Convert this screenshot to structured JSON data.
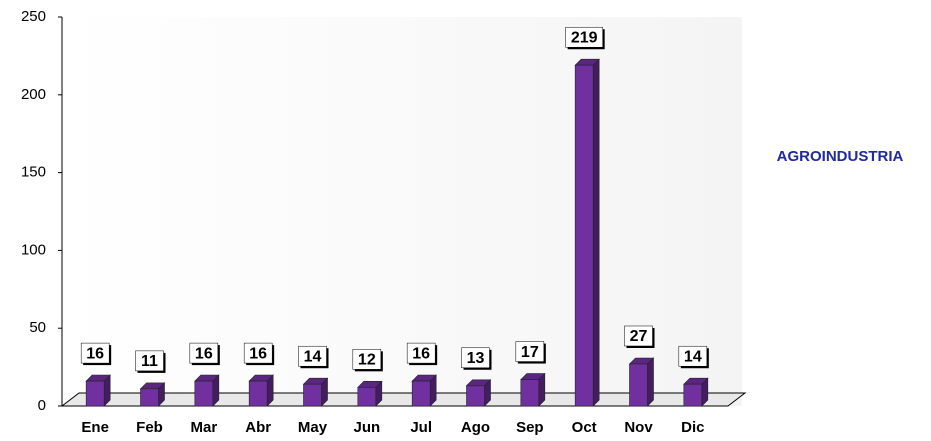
{
  "chart_data": {
    "type": "bar",
    "categories": [
      "Ene",
      "Feb",
      "Mar",
      "Abr",
      "May",
      "Jun",
      "Jul",
      "Ago",
      "Sep",
      "Oct",
      "Nov",
      "Dic"
    ],
    "series": [
      {
        "name": "AGROINDUSTRIA",
        "color": "#7030a0",
        "values": [
          16,
          11,
          16,
          16,
          14,
          12,
          16,
          13,
          17,
          219,
          27,
          14
        ]
      }
    ],
    "ylim": [
      0,
      250
    ],
    "yticks": [
      0,
      50,
      100,
      150,
      200,
      250
    ],
    "legend": "right"
  }
}
